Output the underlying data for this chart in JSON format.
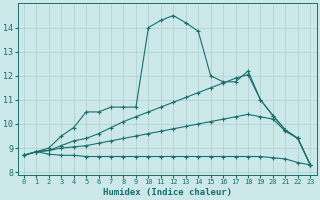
{
  "xlabel": "Humidex (Indice chaleur)",
  "xlim": [
    -0.5,
    23.5
  ],
  "ylim": [
    7.9,
    15.0
  ],
  "yticks": [
    8,
    9,
    10,
    11,
    12,
    13,
    14
  ],
  "xticks": [
    0,
    1,
    2,
    3,
    4,
    5,
    6,
    7,
    8,
    9,
    10,
    11,
    12,
    13,
    14,
    15,
    16,
    17,
    18,
    19,
    20,
    21,
    22,
    23
  ],
  "bg_color": "#cce8e8",
  "line_color": "#1a6e6e",
  "grid_color": "#aacfcf",
  "lines": [
    {
      "x": [
        0,
        1,
        2,
        3,
        4,
        5,
        6,
        7,
        8,
        9,
        10,
        11,
        12,
        13,
        14,
        15,
        16,
        17,
        18,
        19,
        20,
        21,
        22,
        23
      ],
      "y": [
        8.7,
        8.85,
        8.75,
        8.7,
        8.7,
        8.65,
        8.65,
        8.65,
        8.65,
        8.65,
        8.65,
        8.65,
        8.65,
        8.65,
        8.65,
        8.65,
        8.65,
        8.65,
        8.65,
        8.65,
        8.6,
        8.55,
        8.4,
        8.3
      ],
      "marker": true
    },
    {
      "x": [
        0,
        1,
        2,
        3,
        4,
        5,
        6,
        7,
        8,
        9,
        10,
        11,
        12,
        13,
        14,
        15,
        16,
        17,
        18,
        19,
        20,
        21,
        22,
        23
      ],
      "y": [
        8.7,
        8.85,
        8.9,
        9.0,
        9.05,
        9.1,
        9.2,
        9.3,
        9.4,
        9.5,
        9.6,
        9.7,
        9.8,
        9.9,
        10.0,
        10.1,
        10.2,
        10.3,
        10.4,
        10.3,
        10.2,
        9.7,
        9.4,
        8.3
      ],
      "marker": true
    },
    {
      "x": [
        0,
        1,
        2,
        3,
        4,
        5,
        6,
        7,
        8,
        9,
        10,
        11,
        12,
        13,
        14,
        15,
        16,
        17,
        18,
        19,
        20,
        21,
        22,
        23
      ],
      "y": [
        8.7,
        8.85,
        8.9,
        9.1,
        9.3,
        9.4,
        9.6,
        9.85,
        10.1,
        10.3,
        10.5,
        10.7,
        10.9,
        11.1,
        11.3,
        11.5,
        11.7,
        11.9,
        12.05,
        11.0,
        10.35,
        9.75,
        9.4,
        8.3
      ],
      "marker": true
    },
    {
      "x": [
        0,
        1,
        2,
        3,
        4,
        5,
        6,
        7,
        8,
        9,
        10,
        11,
        12,
        13,
        14,
        15,
        16,
        17,
        18,
        19,
        20,
        21,
        22,
        23
      ],
      "y": [
        8.7,
        8.85,
        9.0,
        9.5,
        9.85,
        10.5,
        10.5,
        10.7,
        10.7,
        10.7,
        14.0,
        14.3,
        14.5,
        14.2,
        13.85,
        12.0,
        11.75,
        11.75,
        12.2,
        11.0,
        10.35,
        9.75,
        9.4,
        8.3
      ],
      "marker": true
    }
  ]
}
